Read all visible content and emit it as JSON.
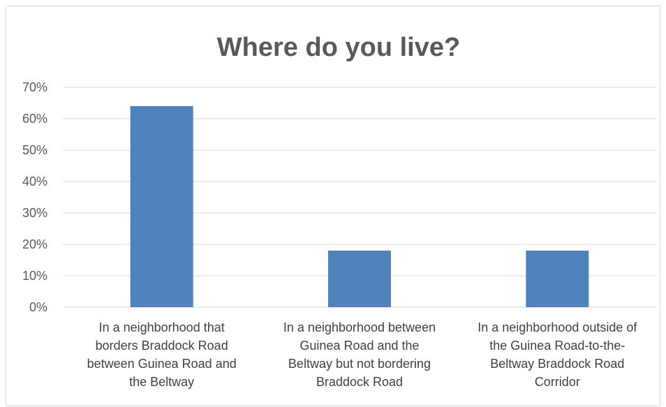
{
  "chart_data": {
    "type": "bar",
    "title": "Where do you live?",
    "categories": [
      "In a neighborhood that borders Braddock Road between Guinea Road and the Beltway",
      "In a neighborhood between Guinea Road and the Beltway but not bordering Braddock Road",
      "In a neighborhood outside of the Guinea Road-to-the-Beltway Braddock Road Corridor"
    ],
    "category_lines": [
      [
        "In a neighborhood that",
        "borders Braddock Road",
        "between Guinea Road and",
        "the Beltway"
      ],
      [
        "In a neighborhood between",
        "Guinea Road and the",
        "Beltway but not bordering",
        "Braddock Road"
      ],
      [
        "In a neighborhood outside of",
        "the Guinea Road-to-the-",
        "Beltway Braddock Road",
        "Corridor"
      ]
    ],
    "values": [
      0.64,
      0.18,
      0.18
    ],
    "ylim": [
      0,
      0.7
    ],
    "yticks": [
      "0%",
      "10%",
      "20%",
      "30%",
      "40%",
      "50%",
      "60%",
      "70%"
    ],
    "ytick_values": [
      0,
      0.1,
      0.2,
      0.3,
      0.4,
      0.5,
      0.6,
      0.7
    ],
    "grid": true,
    "bar_color": "#4f81bd",
    "grid_color": "#d9d9d9",
    "xlabel": "",
    "ylabel": ""
  }
}
